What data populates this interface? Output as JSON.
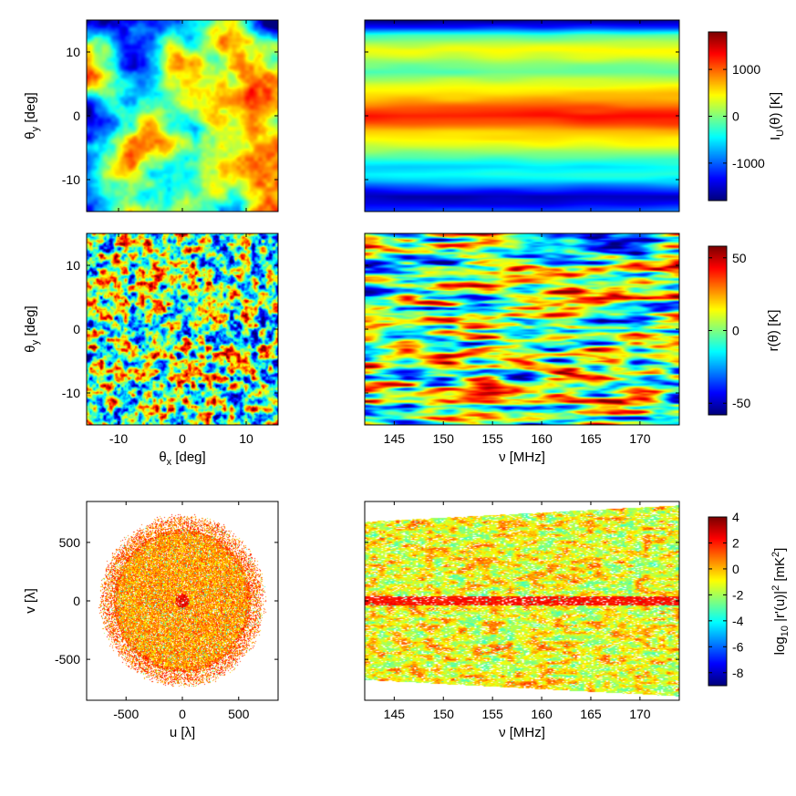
{
  "chart_data": [
    {
      "type": "heatmap",
      "panel": "top-left",
      "title": "",
      "xlabel": "",
      "ylabel": {
        "base": "θ",
        "sub": "y",
        "rest": " [deg]"
      },
      "xlim": [
        -15,
        15
      ],
      "ylim": [
        -15,
        15
      ],
      "xticks": [
        -10,
        0,
        10
      ],
      "yticks": [
        -10,
        0,
        10
      ],
      "show_xtick_labels": false,
      "show_ytick_labels": true,
      "pattern": "smooth large-scale field, warm blob lower-left and upper-right, cool top and bottom",
      "seed": 11
    },
    {
      "type": "heatmap",
      "panel": "top-right",
      "title": "",
      "xlabel": "",
      "ylabel": "",
      "xlim": [
        142,
        174
      ],
      "ylim": [
        -15,
        15
      ],
      "xticks": [
        145,
        150,
        155,
        160,
        165,
        170
      ],
      "yticks": [
        -10,
        0,
        10
      ],
      "show_xtick_labels": false,
      "show_ytick_labels": false,
      "pattern": "horizontal bands (frequency-smooth foreground)",
      "band_profile": [
        0.02,
        0.18,
        0.45,
        0.55,
        0.62,
        0.58,
        0.5,
        0.47,
        0.55,
        0.6,
        0.66,
        0.72,
        0.8,
        0.86,
        0.8,
        0.7,
        0.64,
        0.6,
        0.52,
        0.42,
        0.35,
        0.4,
        0.32,
        0.18,
        0.06,
        0.1,
        0.22
      ],
      "seed": 12
    },
    {
      "type": "heatmap",
      "panel": "middle-left",
      "title": "",
      "xlabel": {
        "base": "θ",
        "sub": "x",
        "rest": " [deg]"
      },
      "ylabel": {
        "base": "θ",
        "sub": "y",
        "rest": " [deg]"
      },
      "xlim": [
        -15,
        15
      ],
      "ylim": [
        -15,
        15
      ],
      "xticks": [
        -10,
        0,
        10
      ],
      "yticks": [
        -10,
        0,
        10
      ],
      "show_xtick_labels": true,
      "show_ytick_labels": true,
      "pattern": "small-scale random residual field",
      "seed": 21
    },
    {
      "type": "heatmap",
      "panel": "middle-right",
      "title": "",
      "xlabel": "ν [MHz]",
      "ylabel": "",
      "xlim": [
        142,
        174
      ],
      "ylim": [
        -15,
        15
      ],
      "xticks": [
        145,
        150,
        155,
        160,
        165,
        170
      ],
      "yticks": [
        -10,
        0,
        10
      ],
      "show_xtick_labels": true,
      "show_ytick_labels": false,
      "pattern": "elongated horizontal streaks of residual",
      "seed": 22
    },
    {
      "type": "scatter",
      "panel": "bottom-left",
      "title": "",
      "xlabel": "u [λ]",
      "ylabel": "v [λ]",
      "xlim": [
        -850,
        850
      ],
      "ylim": [
        -850,
        850
      ],
      "xticks": [
        -500,
        0,
        500
      ],
      "yticks": [
        -500,
        0,
        500
      ],
      "uv_radius": 720,
      "pattern": "filled disk of uv points colored by log power",
      "seed": 31
    },
    {
      "type": "heatmap",
      "panel": "bottom-right",
      "title": "",
      "xlabel": "ν [MHz]",
      "ylabel": "",
      "xlim": [
        142,
        174
      ],
      "ylim": [
        -850,
        850
      ],
      "xticks": [
        145,
        150,
        155,
        160,
        165,
        170
      ],
      "yticks": [
        -500,
        0,
        500
      ],
      "uv_radius_range": [
        680,
        820
      ],
      "show_xtick_labels": true,
      "show_ytick_labels": false,
      "pattern": "noisy horizontal dashes, brightest near v=0",
      "seed": 32
    },
    {
      "type": "colorbar",
      "panel": "colorbar-1",
      "label": {
        "base": "I",
        "sub": "U",
        "rest": "(θ)  [K]"
      },
      "range": [
        -1800,
        1800
      ],
      "ticks": [
        -1000,
        0,
        1000
      ]
    },
    {
      "type": "colorbar",
      "panel": "colorbar-2",
      "label": {
        "base": "r(θ)  [K]",
        "sub": "",
        "rest": ""
      },
      "range": [
        -58,
        58
      ],
      "ticks": [
        -50,
        0,
        50
      ]
    },
    {
      "type": "colorbar",
      "panel": "colorbar-3",
      "label": {
        "base": "log",
        "sub": "10",
        "rest": " |r'(u)|",
        "sup": "2",
        "rest2": "  [mK",
        "sup2": "2",
        "rest3": "]"
      },
      "range": [
        -9,
        4
      ],
      "ticks": [
        -8,
        -6,
        -4,
        -2,
        0,
        2,
        4
      ]
    }
  ]
}
